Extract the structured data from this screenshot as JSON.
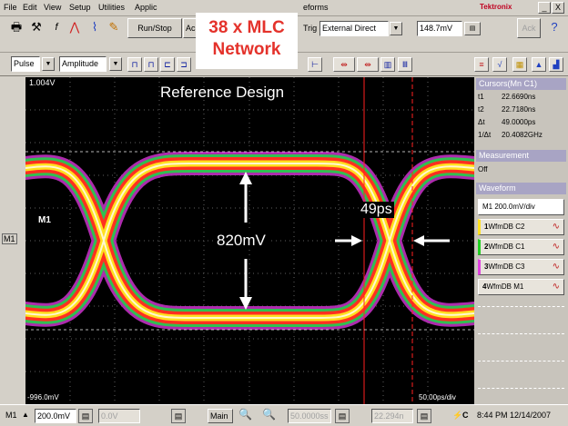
{
  "menu": {
    "items": [
      "File",
      "Edit",
      "View",
      "Setup",
      "Utilities",
      "Applic",
      "eforms"
    ],
    "brand": "Tektronix",
    "minimize": "_",
    "close": "X"
  },
  "toolbar": {
    "run_stop": "Run/Stop",
    "ac_label": "Ac",
    "trig_label": "Trig",
    "trig_source": "External Direct",
    "trig_level": "148.7mV",
    "help_label": "Ack"
  },
  "toolbar2": {
    "meas_mode": "Pulse",
    "meas_type": "Amplitude"
  },
  "overlay": {
    "line1": "38 x MLC",
    "line2": "Network"
  },
  "scope": {
    "top_ref": "1.004V",
    "bottom_ref": "-996.0mV",
    "title": "Reference Design",
    "channel_label": "M1",
    "amplitude": "820mV",
    "jitter": "49ps",
    "timebase": "50.00ps/div",
    "left_marker": "M1"
  },
  "cursors": {
    "header": "Cursors(Mn C1)",
    "rows": [
      {
        "label": "t1",
        "value": "22.6690ns"
      },
      {
        "label": "t2",
        "value": "22.7180ns"
      },
      {
        "label": "Δt",
        "value": "49.0000ps"
      },
      {
        "label": "1/Δt",
        "value": "20.4082GHz"
      }
    ]
  },
  "measurement": {
    "header": "Measurement",
    "state": "Off"
  },
  "waveform": {
    "header": "Waveform",
    "scale": "M1 200.0mV/div",
    "items": [
      {
        "num": "1",
        "label": "WfmDB C2",
        "color": "#ffe020"
      },
      {
        "num": "2",
        "label": "WfmDB C1",
        "color": "#20d020"
      },
      {
        "num": "3",
        "label": "WfmDB C3",
        "color": "#e040e0"
      },
      {
        "num": "4",
        "label": "WfmDB M1",
        "color": "#ffffff"
      }
    ]
  },
  "status": {
    "channel": "M1",
    "scale": "200.0mV",
    "offset": "0.0V",
    "main": "Main",
    "horiz_pos": "50.0000ss",
    "trig_pos": "22.294n",
    "trigger_state": "C",
    "datetime": "8:44 PM 12/14/2007"
  },
  "colors": {
    "accent_overlay": "#e4322b",
    "panel_header": "#a8a4c4",
    "scope_bg": "#000000"
  }
}
